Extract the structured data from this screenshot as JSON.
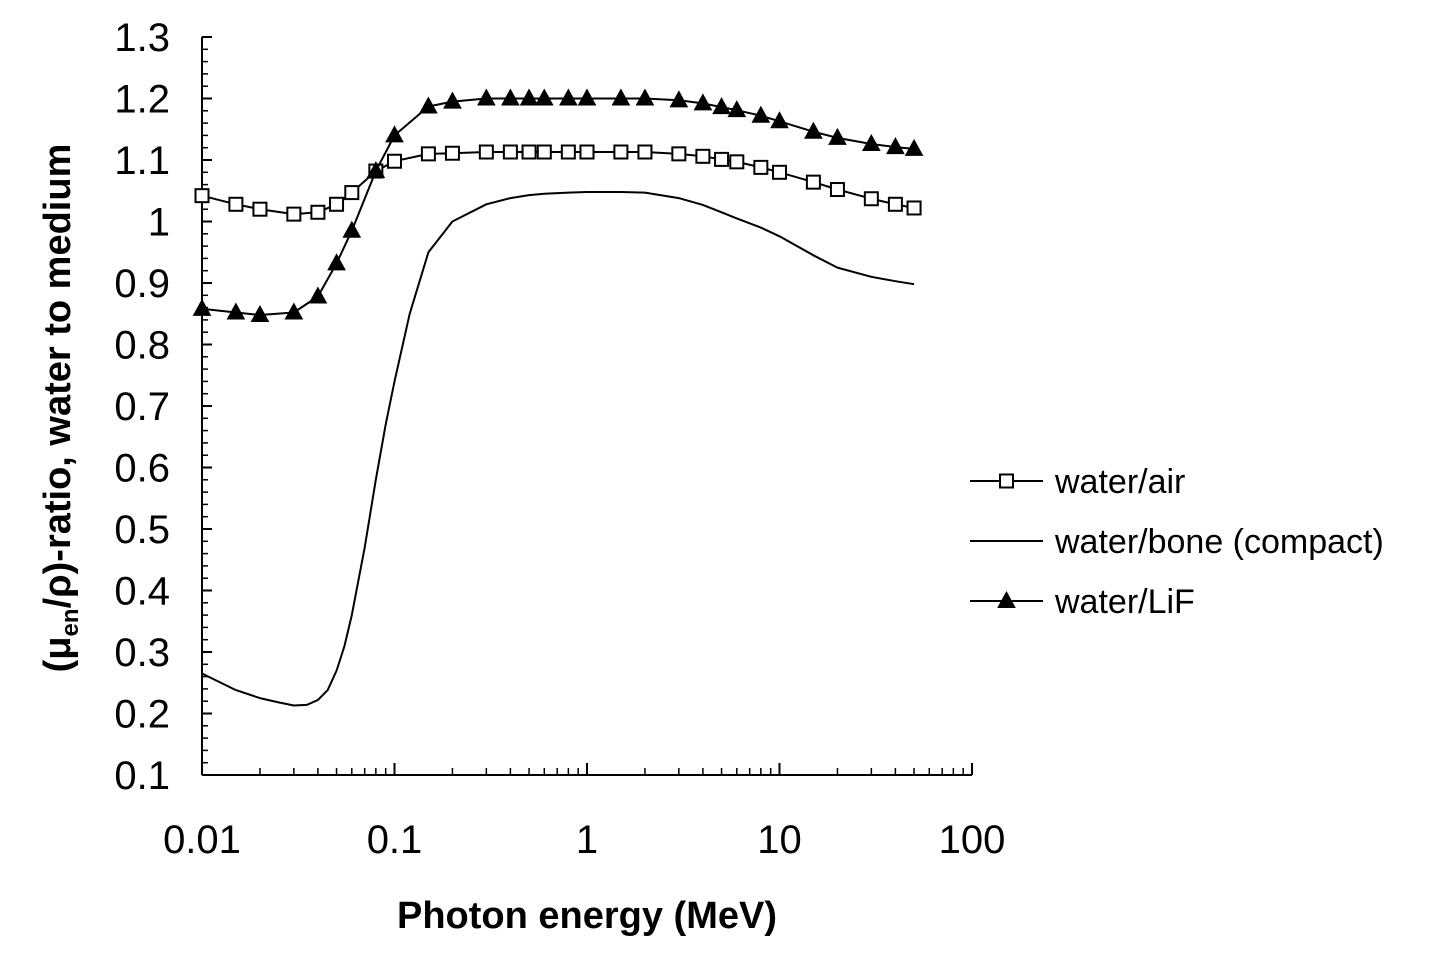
{
  "chart_data": {
    "type": "line",
    "xscale": "log",
    "xlim": [
      0.01,
      100
    ],
    "ylim": [
      0.1,
      1.3
    ],
    "xticks": [
      0.01,
      0.1,
      1,
      10,
      100
    ],
    "xtick_labels": [
      "0.01",
      "0.1",
      "1",
      "10",
      "100"
    ],
    "yticks": [
      0.1,
      0.2,
      0.3,
      0.4,
      0.5,
      0.6,
      0.7,
      0.8,
      0.9,
      1.0,
      1.1,
      1.2,
      1.3
    ],
    "ytick_labels": [
      "0.1",
      "0.2",
      "0.3",
      "0.4",
      "0.5",
      "0.6",
      "0.7",
      "0.8",
      "0.9",
      "1",
      "1.1",
      "1.2",
      "1.3"
    ],
    "xlabel": "Photon energy (MeV)",
    "ylabel": {
      "prefix": "(μ",
      "subscript": "en",
      "suffix": "/ρ)-ratio, water to medium"
    },
    "grid": false,
    "legend_position": "right",
    "series": [
      {
        "name": "water/air",
        "marker": "open-square",
        "x": [
          0.01,
          0.015,
          0.02,
          0.03,
          0.04,
          0.05,
          0.06,
          0.08,
          0.1,
          0.15,
          0.2,
          0.3,
          0.4,
          0.5,
          0.6,
          0.8,
          1,
          1.5,
          2,
          3,
          4,
          5,
          6,
          8,
          10,
          15,
          20,
          30,
          40,
          50
        ],
        "y": [
          1.042,
          1.028,
          1.02,
          1.012,
          1.015,
          1.028,
          1.047,
          1.082,
          1.098,
          1.11,
          1.111,
          1.113,
          1.113,
          1.113,
          1.113,
          1.113,
          1.113,
          1.113,
          1.113,
          1.11,
          1.106,
          1.101,
          1.097,
          1.088,
          1.08,
          1.064,
          1.052,
          1.037,
          1.028,
          1.022
        ]
      },
      {
        "name": "water/bone (compact)",
        "marker": "none",
        "x": [
          0.01,
          0.015,
          0.02,
          0.025,
          0.03,
          0.035,
          0.04,
          0.045,
          0.05,
          0.055,
          0.06,
          0.07,
          0.08,
          0.09,
          0.1,
          0.12,
          0.15,
          0.2,
          0.3,
          0.4,
          0.5,
          0.6,
          0.8,
          1,
          1.5,
          2,
          3,
          4,
          5,
          6,
          8,
          10,
          15,
          20,
          30,
          40,
          50
        ],
        "y": [
          0.265,
          0.238,
          0.225,
          0.218,
          0.213,
          0.214,
          0.222,
          0.238,
          0.27,
          0.31,
          0.36,
          0.47,
          0.58,
          0.67,
          0.74,
          0.85,
          0.95,
          1.0,
          1.028,
          1.038,
          1.043,
          1.045,
          1.047,
          1.048,
          1.048,
          1.047,
          1.038,
          1.027,
          1.015,
          1.005,
          0.99,
          0.976,
          0.945,
          0.925,
          0.91,
          0.903,
          0.898
        ]
      },
      {
        "name": "water/LiF",
        "marker": "filled-triangle",
        "x": [
          0.01,
          0.015,
          0.02,
          0.03,
          0.04,
          0.05,
          0.06,
          0.08,
          0.1,
          0.15,
          0.2,
          0.3,
          0.4,
          0.5,
          0.6,
          0.8,
          1,
          1.5,
          2,
          3,
          4,
          5,
          6,
          8,
          10,
          15,
          20,
          30,
          40,
          50
        ],
        "y": [
          0.858,
          0.852,
          0.848,
          0.852,
          0.878,
          0.932,
          0.985,
          1.082,
          1.14,
          1.187,
          1.195,
          1.2,
          1.2,
          1.2,
          1.2,
          1.2,
          1.2,
          1.2,
          1.2,
          1.197,
          1.192,
          1.186,
          1.181,
          1.172,
          1.163,
          1.146,
          1.136,
          1.126,
          1.121,
          1.118
        ]
      }
    ]
  }
}
